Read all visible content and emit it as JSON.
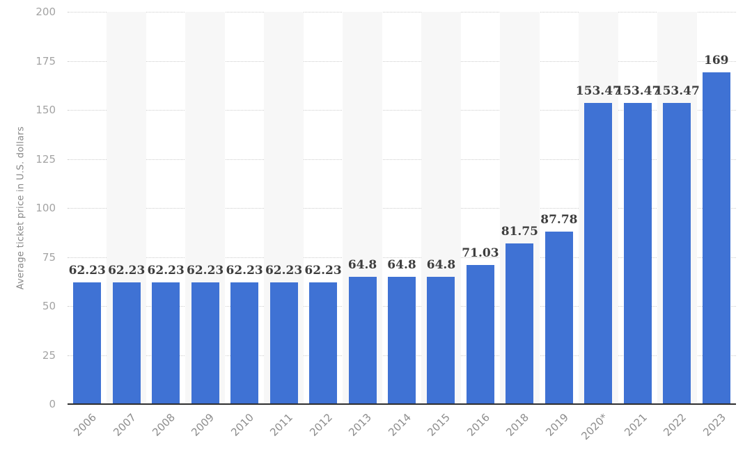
{
  "chart_data": {
    "type": "bar",
    "title": "",
    "xlabel": "",
    "ylabel": "Average ticket price in U.S. dollars",
    "ylim": [
      0,
      200
    ],
    "ytick_step": 25,
    "yticks": [
      0,
      25,
      50,
      75,
      100,
      125,
      150,
      175,
      200
    ],
    "grid": "horizontal-dotted",
    "legend": "none",
    "categories": [
      "2006",
      "2007",
      "2008",
      "2009",
      "2010",
      "2011",
      "2012",
      "2013",
      "2014",
      "2015",
      "2016",
      "2018",
      "2019",
      "2020*",
      "2021",
      "2022",
      "2023"
    ],
    "values": [
      62.23,
      62.23,
      62.23,
      62.23,
      62.23,
      62.23,
      62.23,
      64.8,
      64.8,
      64.8,
      71.03,
      81.75,
      87.78,
      153.47,
      153.47,
      153.47,
      169
    ],
    "value_labels": [
      "62.23",
      "62.23",
      "62.23",
      "62.23",
      "62.23",
      "62.23",
      "62.23",
      "64.8",
      "64.8",
      "64.8",
      "71.03",
      "81.75",
      "87.78",
      "153.47",
      "153.47",
      "153.47",
      "169"
    ],
    "colors": {
      "bar": "#3f72d4",
      "column_stripe": "#f7f7f7",
      "gridline": "#cccccc",
      "axis_line": "#2e2e2e",
      "tick_text": "#a3a3a3",
      "x_tick_text": "#8d8d8d",
      "value_text": "#3d3d3d",
      "background": "#ffffff"
    }
  }
}
